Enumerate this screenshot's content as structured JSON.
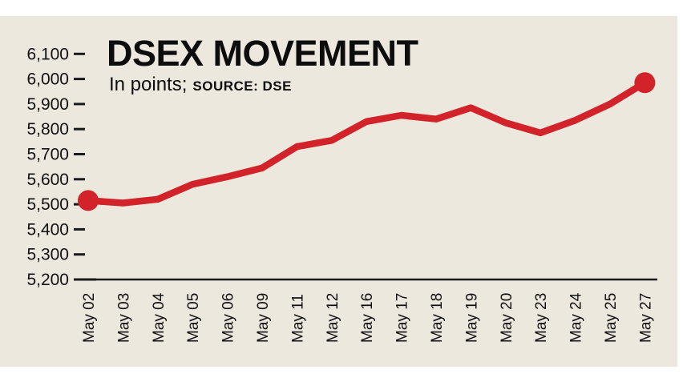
{
  "header": {
    "title": "DSEX MOVEMENT",
    "units_label": "In points;",
    "source_label": "SOURCE: DSE"
  },
  "colors": {
    "line_red": "#d2232a",
    "panel_background": "#ede8de",
    "text": "#111111",
    "axis": "#1a1a1a"
  },
  "chart_data": {
    "type": "line",
    "title": "DSEX MOVEMENT",
    "subtitle": "In points; SOURCE: DSE",
    "xlabel": "",
    "ylabel": "In points",
    "categories": [
      "May 02",
      "May 03",
      "May 04",
      "May 05",
      "May 06",
      "May 09",
      "May 11",
      "May 12",
      "May 16",
      "May 17",
      "May 18",
      "May 19",
      "May 20",
      "May 23",
      "May 24",
      "May 25",
      "May 27"
    ],
    "values": [
      5515,
      5505,
      5520,
      5580,
      5610,
      5645,
      5730,
      5755,
      5830,
      5855,
      5840,
      5885,
      5825,
      5785,
      5835,
      5900,
      5985
    ],
    "ylim": [
      5200,
      6150
    ],
    "yticks": [
      5200,
      5300,
      5400,
      5500,
      5600,
      5700,
      5800,
      5900,
      6000,
      6100
    ],
    "grid": false,
    "legend": false,
    "markers": "endpoints-only",
    "x_tick_rotation_degrees": 90
  }
}
